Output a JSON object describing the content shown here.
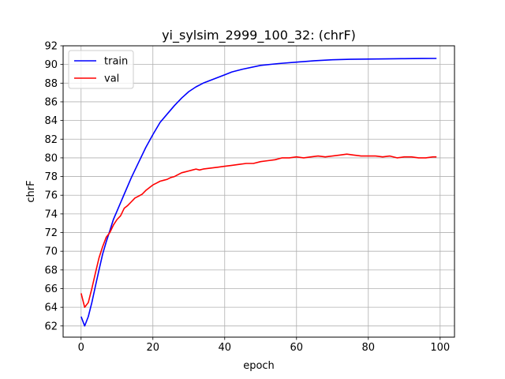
{
  "chart_data": {
    "type": "line",
    "title": "yi_sylsim_2999_100_32: (chrF)",
    "xlabel": "epoch",
    "ylabel": "chrF",
    "xlim": [
      -5,
      104
    ],
    "ylim": [
      60.8,
      92
    ],
    "xticks": [
      0,
      20,
      40,
      60,
      80,
      100
    ],
    "yticks": [
      62,
      64,
      66,
      68,
      70,
      72,
      74,
      76,
      78,
      80,
      82,
      84,
      86,
      88,
      90,
      92
    ],
    "grid": true,
    "legend_position": "top-left",
    "series": [
      {
        "name": "train",
        "color": "#0000ff",
        "x": [
          0,
          1,
          2,
          3,
          4,
          5,
          6,
          7,
          8,
          9,
          10,
          12,
          14,
          16,
          18,
          20,
          22,
          24,
          26,
          28,
          30,
          32,
          34,
          36,
          38,
          40,
          42,
          45,
          50,
          55,
          60,
          65,
          70,
          75,
          80,
          85,
          90,
          95,
          99
        ],
        "y": [
          63.0,
          62.0,
          63.0,
          64.5,
          66.3,
          68.0,
          69.7,
          71.0,
          72.2,
          73.4,
          74.3,
          76.1,
          77.9,
          79.5,
          81.1,
          82.5,
          83.8,
          84.7,
          85.6,
          86.4,
          87.1,
          87.6,
          88.0,
          88.3,
          88.6,
          88.9,
          89.2,
          89.5,
          89.9,
          90.1,
          90.25,
          90.4,
          90.5,
          90.55,
          90.58,
          90.6,
          90.62,
          90.64,
          90.65
        ]
      },
      {
        "name": "val",
        "color": "#ff0000",
        "x": [
          0,
          1,
          2,
          3,
          4,
          5,
          6,
          7,
          8,
          9,
          10,
          11,
          12,
          13,
          14,
          15,
          16,
          17,
          18,
          19,
          20,
          21,
          22,
          23,
          24,
          25,
          26,
          27,
          28,
          29,
          30,
          31,
          32,
          33,
          34,
          36,
          38,
          40,
          42,
          44,
          46,
          48,
          50,
          52,
          54,
          56,
          58,
          60,
          62,
          64,
          66,
          68,
          70,
          72,
          74,
          76,
          78,
          80,
          82,
          84,
          86,
          88,
          90,
          92,
          94,
          96,
          98,
          99
        ],
        "y": [
          65.5,
          64.0,
          64.5,
          66.0,
          67.7,
          69.3,
          70.5,
          71.5,
          72.0,
          72.8,
          73.4,
          73.8,
          74.6,
          74.9,
          75.3,
          75.7,
          75.9,
          76.1,
          76.5,
          76.8,
          77.1,
          77.3,
          77.5,
          77.6,
          77.7,
          77.9,
          78.0,
          78.2,
          78.4,
          78.5,
          78.6,
          78.7,
          78.8,
          78.7,
          78.8,
          78.9,
          79.0,
          79.1,
          79.2,
          79.3,
          79.4,
          79.4,
          79.6,
          79.7,
          79.8,
          80.0,
          80.0,
          80.1,
          80.0,
          80.1,
          80.2,
          80.1,
          80.2,
          80.3,
          80.4,
          80.3,
          80.2,
          80.2,
          80.2,
          80.1,
          80.2,
          80.0,
          80.1,
          80.1,
          80.0,
          80.0,
          80.1,
          80.1
        ]
      }
    ]
  }
}
